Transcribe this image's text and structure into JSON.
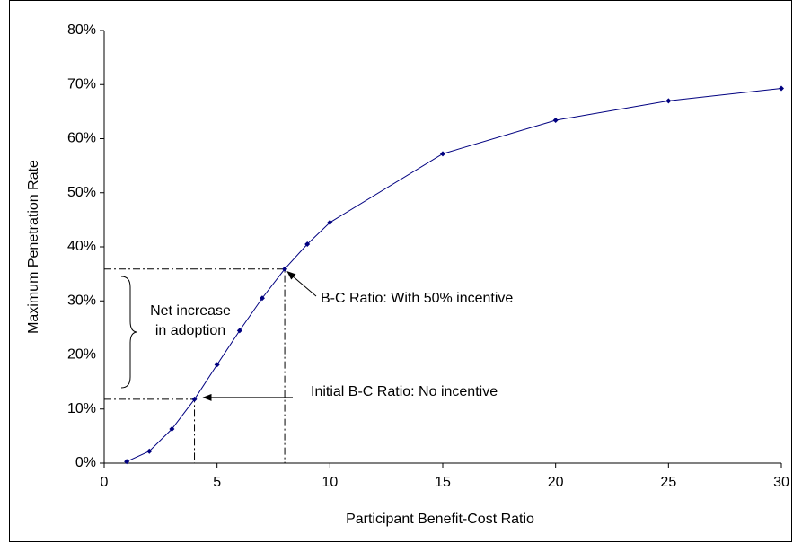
{
  "chart_data": {
    "type": "line",
    "x_label": "Participant Benefit-Cost Ratio",
    "y_label": "Maximum Penetration Rate",
    "x": [
      1,
      2,
      3,
      4,
      5,
      6,
      7,
      8,
      9,
      10,
      15,
      20,
      25,
      30
    ],
    "series": [
      {
        "color": "#000080",
        "values": [
          0.3,
          2.2,
          6.3,
          11.8,
          18.2,
          24.5,
          30.5,
          35.9,
          40.5,
          44.5,
          57.2,
          63.4,
          67.0,
          69.3
        ]
      }
    ],
    "xlim": [
      0,
      30
    ],
    "xticks": [
      0,
      5,
      10,
      15,
      20,
      25,
      30
    ],
    "ylim": [
      0,
      80
    ],
    "yticks": [
      {
        "value": 0,
        "label": "0%"
      },
      {
        "value": 10,
        "label": "10%"
      },
      {
        "value": 20,
        "label": "20%"
      },
      {
        "value": 30,
        "label": "30%"
      },
      {
        "value": 40,
        "label": "40%"
      },
      {
        "value": 50,
        "label": "50%"
      },
      {
        "value": 60,
        "label": "60%"
      },
      {
        "value": 70,
        "label": "70%"
      },
      {
        "value": 80,
        "label": "80%"
      }
    ],
    "grid": false,
    "annotations": [
      "B-C Ratio: With 50% incentive",
      "Initial B-C Ratio: No incentive",
      "Net increase",
      "in adoption"
    ]
  }
}
